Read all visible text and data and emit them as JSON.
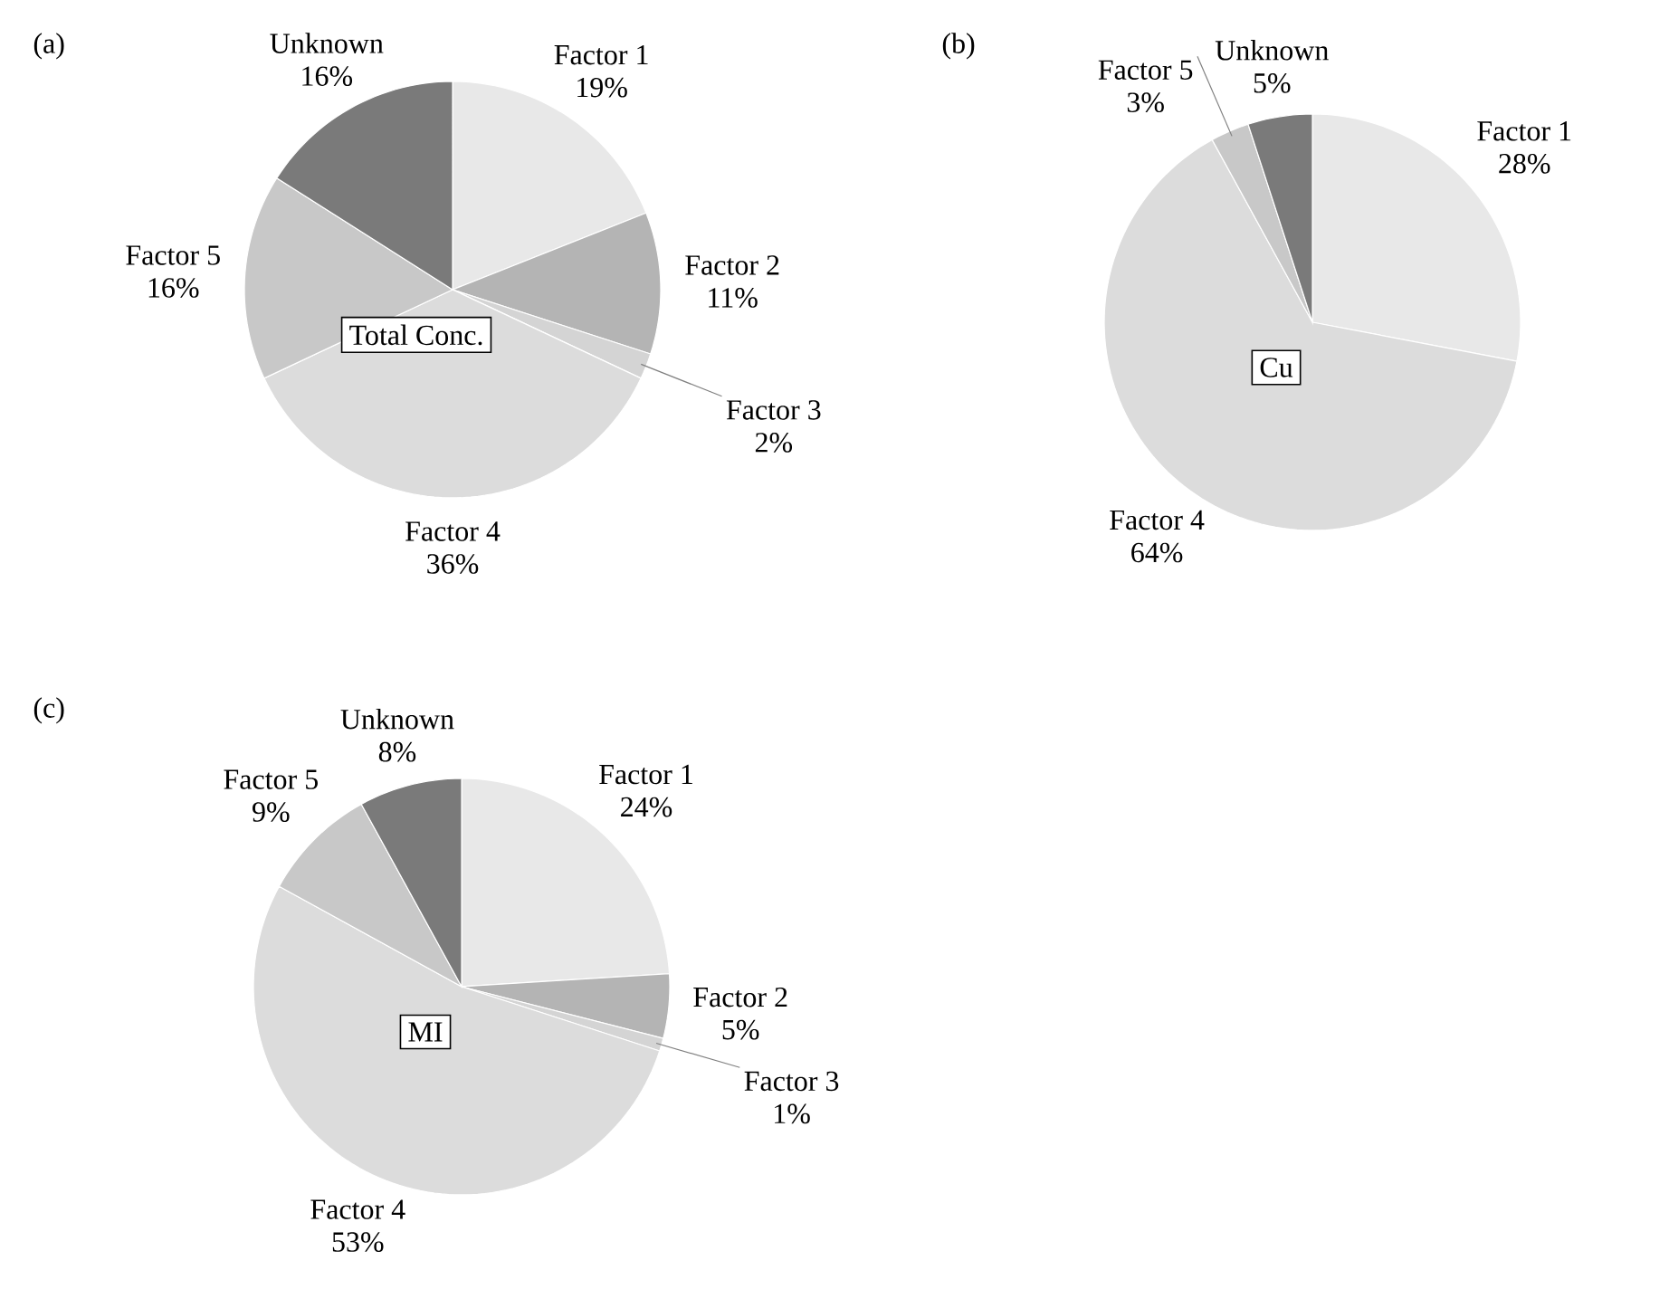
{
  "chart_data": [
    {
      "type": "pie",
      "title": "(a)",
      "annotations": [
        "Total Conc."
      ],
      "categories": [
        "Factor 1",
        "Factor 2",
        "Factor 3",
        "Factor 4",
        "Factor 5",
        "Unknown"
      ],
      "values": [
        19,
        11,
        2,
        36,
        16,
        16
      ],
      "value_labels": [
        "19%",
        "11%",
        "2%",
        "36%",
        "16%",
        "16%"
      ],
      "colors": [
        "#e8e8e8",
        "#b4b4b4",
        "#d4d4d4",
        "#dcdcdc",
        "#c8c8c8",
        "#7a7a7a"
      ]
    },
    {
      "type": "pie",
      "title": "(b)",
      "annotations": [
        "Cu"
      ],
      "categories": [
        "Factor 1",
        "Factor 4",
        "Factor 5",
        "Unknown"
      ],
      "values": [
        28,
        64,
        3,
        5
      ],
      "value_labels": [
        "28%",
        "64%",
        "3%",
        "5%"
      ],
      "colors": [
        "#e8e8e8",
        "#dcdcdc",
        "#c8c8c8",
        "#7a7a7a"
      ]
    },
    {
      "type": "pie",
      "title": "(c)",
      "annotations": [
        "MI"
      ],
      "categories": [
        "Factor 1",
        "Factor 2",
        "Factor 3",
        "Factor 4",
        "Factor 5",
        "Unknown"
      ],
      "values": [
        24,
        5,
        1,
        53,
        9,
        8
      ],
      "value_labels": [
        "24%",
        "5%",
        "1%",
        "53%",
        "9%",
        "8%"
      ],
      "colors": [
        "#e8e8e8",
        "#b4b4b4",
        "#d4d4d4",
        "#dcdcdc",
        "#c8c8c8",
        "#7a7a7a"
      ]
    }
  ]
}
